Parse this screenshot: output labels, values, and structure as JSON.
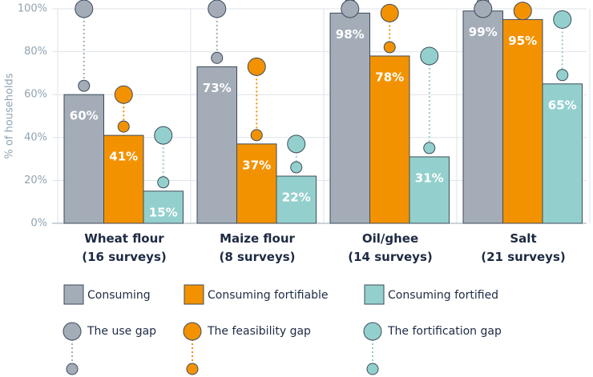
{
  "chart_data": {
    "type": "bar",
    "y_label": "% of households",
    "categories": [
      "Wheat flour\n(16 surveys)",
      "Maize flour\n(8 surveys)",
      "Oil/ghee\n(14 surveys)",
      "Salt\n(21 surveys)"
    ],
    "series": [
      {
        "name": "Consuming",
        "color": "#a3acb7",
        "values": [
          60,
          73,
          98,
          99
        ],
        "value_labels": [
          "60%",
          "73%",
          "98%",
          "99%"
        ]
      },
      {
        "name": "Consuming fortifiable",
        "color": "#f39200",
        "values": [
          41,
          37,
          78,
          95
        ],
        "value_labels": [
          "41%",
          "37%",
          "78%",
          "95%"
        ]
      },
      {
        "name": "Consuming fortified",
        "color": "#93d0cd",
        "values": [
          15,
          22,
          31,
          65
        ],
        "value_labels": [
          "15%",
          "22%",
          "31%",
          "65%"
        ]
      }
    ],
    "total": 100,
    "gap_legend": [
      "The use gap",
      "The feasibility gap",
      "The fortification gap"
    ],
    "ylim": [
      0,
      100
    ],
    "yticks": [
      {
        "value": 0,
        "label": "0%"
      },
      {
        "value": 20,
        "label": "20%"
      },
      {
        "value": 40,
        "label": "40%"
      },
      {
        "value": 60,
        "label": "60%"
      },
      {
        "value": 80,
        "label": "80%"
      },
      {
        "value": 100,
        "label": "100%"
      }
    ],
    "grid": true
  }
}
